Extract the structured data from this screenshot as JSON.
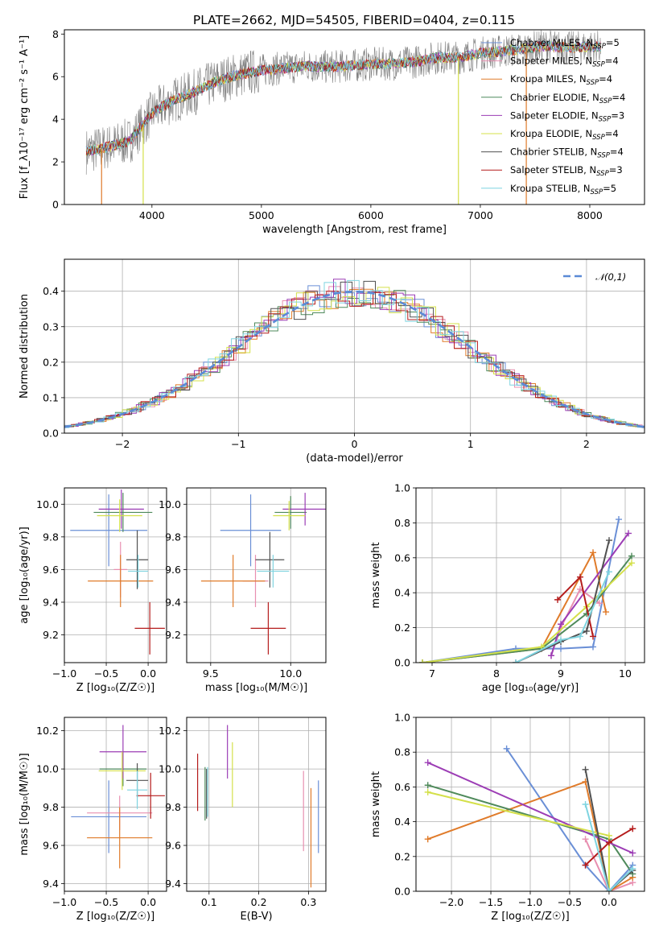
{
  "title": "PLATE=2662, MJD=54505, FIBERID=0404, z=0.115",
  "colors": {
    "chabrier_miles": "#6a8fd6",
    "salpeter_miles": "#e88fb0",
    "kroupa_miles": "#e07b2a",
    "chabrier_elodie": "#4f8a5b",
    "salpeter_elodie": "#9c3db5",
    "kroupa_elodie": "#d4e04a",
    "chabrier_stelib": "#505050",
    "salpeter_stelib": "#b51c1c",
    "kroupa_stelib": "#7fd4e0",
    "data_spectrum": "#808080",
    "gaussian": "#5b8ad6"
  },
  "chart_data": [
    {
      "id": "spectrum",
      "type": "line",
      "xlabel": "wavelength [Angstrom, rest frame]",
      "ylabel": "Flux [f_λ10⁻¹⁷ erg cm⁻² s⁻¹ A⁻¹]",
      "xlim": [
        3200,
        8500
      ],
      "ylim": [
        0,
        8.2
      ],
      "xticks": [
        "4000",
        "5000",
        "6000",
        "7000",
        "8000"
      ],
      "yticks": [
        "0",
        "2",
        "4",
        "6",
        "8"
      ],
      "legend_position": "upper right",
      "grid": false,
      "series": [
        {
          "name": "Chabrier MILES, N_SSP=5",
          "label_main": "Chabrier MILES, N",
          "sub": "SSP",
          "tail": "=5",
          "color_key": "chabrier_miles"
        },
        {
          "name": "Salpeter MILES, N_SSP=4",
          "label_main": "Salpeter MILES, N",
          "sub": "SSP",
          "tail": "=4",
          "color_key": "salpeter_miles"
        },
        {
          "name": "Kroupa MILES, N_SSP=4",
          "label_main": "Kroupa MILES, N",
          "sub": "SSP",
          "tail": "=4",
          "color_key": "kroupa_miles"
        },
        {
          "name": "Chabrier ELODIE, N_SSP=4",
          "label_main": "Chabrier ELODIE, N",
          "sub": "SSP",
          "tail": "=4",
          "color_key": "chabrier_elodie"
        },
        {
          "name": "Salpeter ELODIE, N_SSP=3",
          "label_main": "Salpeter ELODIE, N",
          "sub": "SSP",
          "tail": "=3",
          "color_key": "salpeter_elodie"
        },
        {
          "name": "Kroupa ELODIE, N_SSP=4",
          "label_main": "Kroupa ELODIE, N",
          "sub": "SSP",
          "tail": "=4",
          "color_key": "kroupa_elodie"
        },
        {
          "name": "Chabrier STELIB, N_SSP=4",
          "label_main": "Chabrier STELIB, N",
          "sub": "SSP",
          "tail": "=4",
          "color_key": "chabrier_stelib"
        },
        {
          "name": "Salpeter STELIB, N_SSP=3",
          "label_main": "Salpeter STELIB, N",
          "sub": "SSP",
          "tail": "=3",
          "color_key": "salpeter_stelib"
        },
        {
          "name": "Kroupa STELIB, N_SSP=5",
          "label_main": "Kroupa STELIB, N",
          "sub": "SSP",
          "tail": "=5",
          "color_key": "kroupa_stelib"
        }
      ],
      "continuum": {
        "x": [
          3400,
          3600,
          3800,
          4000,
          4200,
          4400,
          4600,
          4800,
          5000,
          5200,
          5400,
          5600,
          5800,
          6000,
          6200,
          6400,
          6600,
          6800,
          7000,
          7200,
          7400,
          7600,
          7800,
          8000,
          8100
        ],
        "y": [
          2.5,
          2.7,
          3.0,
          4.3,
          4.9,
          5.3,
          5.8,
          6.1,
          6.3,
          6.4,
          6.5,
          6.45,
          6.5,
          6.6,
          6.6,
          6.7,
          6.9,
          6.9,
          7.1,
          7.2,
          7.3,
          7.45,
          7.35,
          7.4,
          7.4
        ]
      },
      "dips": [
        {
          "x": 3540,
          "color_key": "kroupa_miles"
        },
        {
          "x": 3920,
          "color_key": "kroupa_elodie"
        },
        {
          "x": 6800,
          "color_key": "kroupa_elodie"
        },
        {
          "x": 7420,
          "color_key": "kroupa_miles"
        }
      ]
    },
    {
      "id": "residuals",
      "type": "area",
      "xlabel": "(data-model)/error",
      "ylabel": "Normed distribution",
      "xlim": [
        -2.5,
        2.5
      ],
      "ylim": [
        0,
        0.49
      ],
      "xticks": [
        "−2",
        "−1",
        "0",
        "1",
        "2"
      ],
      "yticks": [
        "0.0",
        "0.1",
        "0.2",
        "0.3",
        "0.4"
      ],
      "grid": true,
      "legend": "𝒩(0,1)",
      "legend_position": "upper right",
      "description_series": "gaussian N(0,1) dashed plus nine step histograms"
    },
    {
      "id": "z_age",
      "type": "scatter",
      "xlabel": "Z [log₁₀(Z/Z☉)]",
      "ylabel": "age  [log₁₀(age/yr)]",
      "xlim": [
        -1.0,
        0.22
      ],
      "ylim": [
        9.03,
        10.1
      ],
      "xticks": [
        "−1.0",
        "−0.5",
        "0.0"
      ],
      "yticks": [
        "9.2",
        "9.4",
        "9.6",
        "9.8",
        "10.0"
      ],
      "grid": true,
      "points": [
        {
          "x": -0.47,
          "y": 9.84,
          "xerr": 0.46,
          "yerr": 0.22,
          "color_key": "chabrier_miles"
        },
        {
          "x": -0.33,
          "y": 9.6,
          "xerr": 0.08,
          "yerr": 0.17,
          "color_key": "salpeter_miles"
        },
        {
          "x": -0.33,
          "y": 9.53,
          "xerr": 0.39,
          "yerr": 0.16,
          "color_key": "kroupa_miles"
        },
        {
          "x": -0.3,
          "y": 9.95,
          "xerr": 0.35,
          "yerr": 0.12,
          "color_key": "chabrier_elodie"
        },
        {
          "x": -0.32,
          "y": 9.97,
          "xerr": 0.27,
          "yerr": 0.12,
          "color_key": "salpeter_elodie"
        },
        {
          "x": -0.34,
          "y": 9.93,
          "xerr": 0.27,
          "yerr": 0.1,
          "color_key": "kroupa_elodie"
        },
        {
          "x": -0.13,
          "y": 9.66,
          "xerr": 0.13,
          "yerr": 0.18,
          "color_key": "chabrier_stelib"
        },
        {
          "x": 0.02,
          "y": 9.24,
          "xerr": 0.18,
          "yerr": 0.16,
          "color_key": "salpeter_stelib"
        },
        {
          "x": -0.12,
          "y": 9.59,
          "xerr": 0.12,
          "yerr": 0.1,
          "color_key": "kroupa_stelib"
        }
      ]
    },
    {
      "id": "mass_age",
      "type": "scatter",
      "xlabel": "mass [log₁₀(M/M☉)]",
      "ylabel": "",
      "xlim": [
        9.35,
        10.22
      ],
      "ylim": [
        9.03,
        10.1
      ],
      "xticks": [
        "9.5",
        "10.0"
      ],
      "yticks": [
        "9.2",
        "9.4",
        "9.6",
        "9.8",
        "10.0"
      ],
      "grid": true,
      "points": [
        {
          "x": 9.75,
          "y": 9.84,
          "xerr": 0.19,
          "yerr": 0.22,
          "color_key": "chabrier_miles"
        },
        {
          "x": 9.78,
          "y": 9.53,
          "xerr": 0.08,
          "yerr": 0.16,
          "color_key": "salpeter_miles"
        },
        {
          "x": 9.64,
          "y": 9.53,
          "xerr": 0.2,
          "yerr": 0.16,
          "color_key": "kroupa_miles"
        },
        {
          "x": 10.0,
          "y": 9.95,
          "xerr": 0.1,
          "yerr": 0.1,
          "color_key": "chabrier_elodie"
        },
        {
          "x": 10.09,
          "y": 9.97,
          "xerr": 0.14,
          "yerr": 0.1,
          "color_key": "salpeter_elodie"
        },
        {
          "x": 9.99,
          "y": 9.93,
          "xerr": 0.1,
          "yerr": 0.09,
          "color_key": "kroupa_elodie"
        },
        {
          "x": 9.87,
          "y": 9.66,
          "xerr": 0.09,
          "yerr": 0.17,
          "color_key": "chabrier_stelib"
        },
        {
          "x": 9.86,
          "y": 9.24,
          "xerr": 0.11,
          "yerr": 0.16,
          "color_key": "salpeter_stelib"
        },
        {
          "x": 9.89,
          "y": 9.59,
          "xerr": 0.1,
          "yerr": 0.1,
          "color_key": "kroupa_stelib"
        }
      ]
    },
    {
      "id": "age_weight",
      "type": "line",
      "xlabel": "age  [log₁₀(age/yr)]",
      "ylabel": "mass weight",
      "xlim": [
        6.75,
        10.3
      ],
      "ylim": [
        0,
        1.0
      ],
      "xticks": [
        "7",
        "8",
        "9",
        "10"
      ],
      "yticks": [
        "0.0",
        "0.2",
        "0.4",
        "0.6",
        "0.8",
        "1.0"
      ],
      "grid": true,
      "series": [
        {
          "color_key": "chabrier_miles",
          "x": [
            6.85,
            8.3,
            9.0,
            9.5,
            9.9
          ],
          "y": [
            0.0,
            0.08,
            0.08,
            0.09,
            0.82
          ]
        },
        {
          "color_key": "salpeter_miles",
          "x": [
            8.85,
            9.0,
            9.3,
            9.6
          ],
          "y": [
            0.04,
            0.2,
            0.42,
            0.34
          ]
        },
        {
          "color_key": "kroupa_miles",
          "x": [
            6.85,
            8.7,
            9.5,
            9.7
          ],
          "y": [
            0.0,
            0.08,
            0.63,
            0.29
          ]
        },
        {
          "color_key": "chabrier_elodie",
          "x": [
            6.85,
            8.7,
            9.4,
            10.1
          ],
          "y": [
            0.0,
            0.08,
            0.28,
            0.61
          ]
        },
        {
          "color_key": "salpeter_elodie",
          "x": [
            8.85,
            9.0,
            10.05
          ],
          "y": [
            0.04,
            0.22,
            0.74
          ]
        },
        {
          "color_key": "kroupa_elodie",
          "x": [
            6.85,
            8.7,
            9.4,
            10.1
          ],
          "y": [
            0.0,
            0.09,
            0.32,
            0.57
          ]
        },
        {
          "color_key": "chabrier_stelib",
          "x": [
            8.3,
            9.0,
            9.4,
            9.75
          ],
          "y": [
            0.0,
            0.12,
            0.18,
            0.7
          ]
        },
        {
          "color_key": "salpeter_stelib",
          "x": [
            8.95,
            9.3,
            9.5
          ],
          "y": [
            0.36,
            0.49,
            0.15
          ]
        },
        {
          "color_key": "kroupa_stelib",
          "x": [
            8.3,
            9.0,
            9.3,
            9.75
          ],
          "y": [
            0.0,
            0.13,
            0.15,
            0.52
          ]
        }
      ]
    },
    {
      "id": "z_mass",
      "type": "scatter",
      "xlabel": "Z [log₁₀(Z/Z☉)]",
      "ylabel": "mass [log₁₀(M/M☉)]",
      "xlim": [
        -1.0,
        0.22
      ],
      "ylim": [
        9.36,
        10.27
      ],
      "xticks": [
        "−1.0",
        "−0.5",
        "0.0"
      ],
      "yticks": [
        "9.4",
        "9.6",
        "9.8",
        "10.0",
        "10.2"
      ],
      "grid": true,
      "points": [
        {
          "x": -0.47,
          "y": 9.75,
          "xerr": 0.45,
          "yerr": 0.19,
          "color_key": "chabrier_miles"
        },
        {
          "x": -0.34,
          "y": 9.77,
          "xerr": 0.39,
          "yerr": 0.09,
          "color_key": "salpeter_miles"
        },
        {
          "x": -0.34,
          "y": 9.64,
          "xerr": 0.39,
          "yerr": 0.16,
          "color_key": "kroupa_miles"
        },
        {
          "x": -0.3,
          "y": 10.0,
          "xerr": 0.28,
          "yerr": 0.09,
          "color_key": "chabrier_elodie"
        },
        {
          "x": -0.3,
          "y": 10.09,
          "xerr": 0.28,
          "yerr": 0.14,
          "color_key": "salpeter_elodie"
        },
        {
          "x": -0.31,
          "y": 9.99,
          "xerr": 0.28,
          "yerr": 0.1,
          "color_key": "kroupa_elodie"
        },
        {
          "x": -0.13,
          "y": 9.94,
          "xerr": 0.13,
          "yerr": 0.09,
          "color_key": "chabrier_stelib"
        },
        {
          "x": 0.03,
          "y": 9.86,
          "xerr": 0.17,
          "yerr": 0.12,
          "color_key": "salpeter_stelib"
        },
        {
          "x": -0.13,
          "y": 9.89,
          "xerr": 0.12,
          "yerr": 0.1,
          "color_key": "kroupa_stelib"
        }
      ]
    },
    {
      "id": "ebv_mass",
      "type": "scatter",
      "xlabel": "E(B-V)",
      "ylabel": "",
      "xlim": [
        0.055,
        0.335
      ],
      "ylim": [
        9.36,
        10.27
      ],
      "xticks": [
        "0.1",
        "0.2",
        "0.3"
      ],
      "yticks": [
        "9.4",
        "9.6",
        "9.8",
        "10.0",
        "10.2"
      ],
      "grid": true,
      "points": [
        {
          "x": 0.32,
          "y": 9.75,
          "yerr": 0.19,
          "color_key": "chabrier_miles"
        },
        {
          "x": 0.29,
          "y": 9.78,
          "yerr": 0.21,
          "color_key": "salpeter_miles"
        },
        {
          "x": 0.305,
          "y": 9.64,
          "yerr": 0.26,
          "color_key": "kroupa_miles"
        },
        {
          "x": 0.092,
          "y": 9.87,
          "yerr": 0.14,
          "color_key": "chabrier_elodie"
        },
        {
          "x": 0.137,
          "y": 10.09,
          "yerr": 0.14,
          "color_key": "salpeter_elodie"
        },
        {
          "x": 0.147,
          "y": 9.97,
          "yerr": 0.17,
          "color_key": "kroupa_elodie"
        },
        {
          "x": 0.095,
          "y": 9.87,
          "yerr": 0.13,
          "color_key": "chabrier_stelib"
        },
        {
          "x": 0.077,
          "y": 9.93,
          "yerr": 0.15,
          "color_key": "salpeter_stelib"
        },
        {
          "x": 0.097,
          "y": 9.88,
          "yerr": 0.13,
          "color_key": "kroupa_stelib"
        }
      ]
    },
    {
      "id": "z_weight",
      "type": "line",
      "xlabel": "Z [log₁₀(Z/Z☉)]",
      "ylabel": "mass weight",
      "xlim": [
        -2.45,
        0.45
      ],
      "ylim": [
        0,
        1.0
      ],
      "xticks": [
        "−2.0",
        "−1.5",
        "−1.0",
        "−0.5",
        "0.0"
      ],
      "yticks": [
        "0.0",
        "0.2",
        "0.4",
        "0.6",
        "0.8",
        "1.0"
      ],
      "grid": true,
      "series": [
        {
          "color_key": "chabrier_miles",
          "x": [
            -1.3,
            -0.3,
            0.0,
            0.3
          ],
          "y": [
            0.82,
            0.15,
            0.0,
            0.15
          ]
        },
        {
          "color_key": "salpeter_miles",
          "x": [
            -0.3,
            0.0,
            0.3
          ],
          "y": [
            0.3,
            0.0,
            0.05
          ]
        },
        {
          "color_key": "kroupa_miles",
          "x": [
            -2.3,
            -0.3,
            0.0,
            0.3
          ],
          "y": [
            0.3,
            0.63,
            0.0,
            0.08
          ]
        },
        {
          "color_key": "chabrier_elodie",
          "x": [
            -2.3,
            0.0,
            0.3
          ],
          "y": [
            0.61,
            0.3,
            0.1
          ]
        },
        {
          "color_key": "salpeter_elodie",
          "x": [
            -2.3,
            0.0,
            0.3
          ],
          "y": [
            0.74,
            0.28,
            0.22
          ]
        },
        {
          "color_key": "kroupa_elodie",
          "x": [
            -2.3,
            0.0,
            0.0
          ],
          "y": [
            0.57,
            0.32,
            0.0
          ]
        },
        {
          "color_key": "chabrier_stelib",
          "x": [
            -0.3,
            0.0,
            0.3
          ],
          "y": [
            0.7,
            0.0,
            0.12
          ]
        },
        {
          "color_key": "salpeter_stelib",
          "x": [
            -0.3,
            0.0,
            0.3
          ],
          "y": [
            0.15,
            0.28,
            0.36
          ]
        },
        {
          "color_key": "kroupa_stelib",
          "x": [
            -0.3,
            0.0,
            0.3
          ],
          "y": [
            0.5,
            0.0,
            0.13
          ]
        }
      ]
    }
  ]
}
